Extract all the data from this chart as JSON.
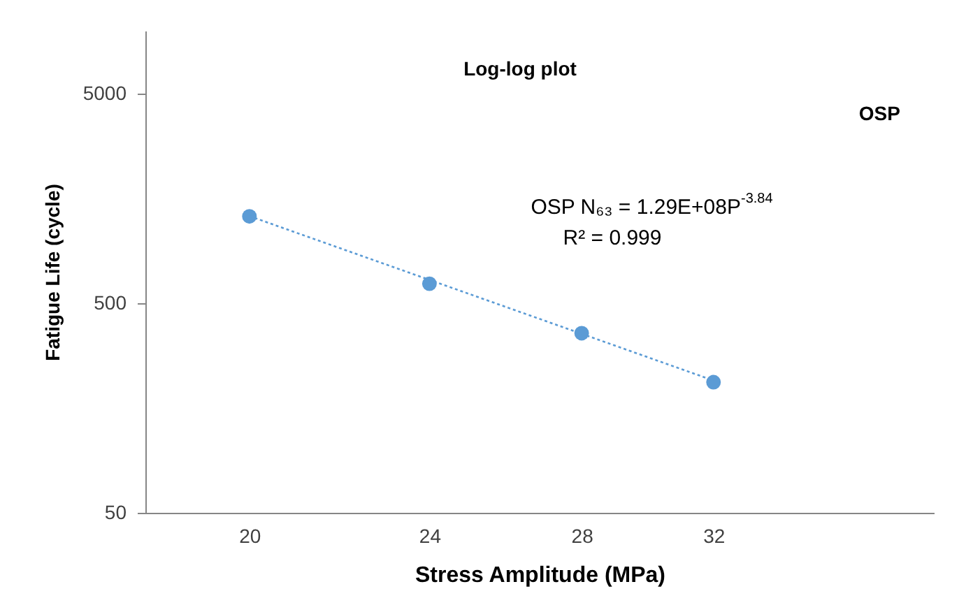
{
  "chart_data": {
    "type": "scatter",
    "title": "Log-log plot",
    "xlabel": "Stress Amplitude (MPa)",
    "ylabel": "Fatigue Life (cycle)",
    "log": "xy",
    "xlim": [
      18,
      40
    ],
    "xticks": [
      20,
      24,
      28,
      32
    ],
    "ylim": [
      50,
      10000
    ],
    "yticks": [
      50,
      500,
      5000
    ],
    "grid": false,
    "series": [
      {
        "color": "#5b9bd5",
        "marker": "circle",
        "x": [
          20,
          24,
          28,
          32
        ],
        "values": [
          1300,
          620,
          360,
          210
        ]
      },
      {
        "type": "line",
        "color": "#5b9bd5",
        "line_style": "dotted",
        "x": [
          20,
          32
        ],
        "values": [
          1304,
          214
        ]
      }
    ],
    "annotations": [
      "OSP",
      "OSP N₆₃ = 1.29E+08P$^{-3.84}$",
      "R² = 0.999"
    ]
  }
}
